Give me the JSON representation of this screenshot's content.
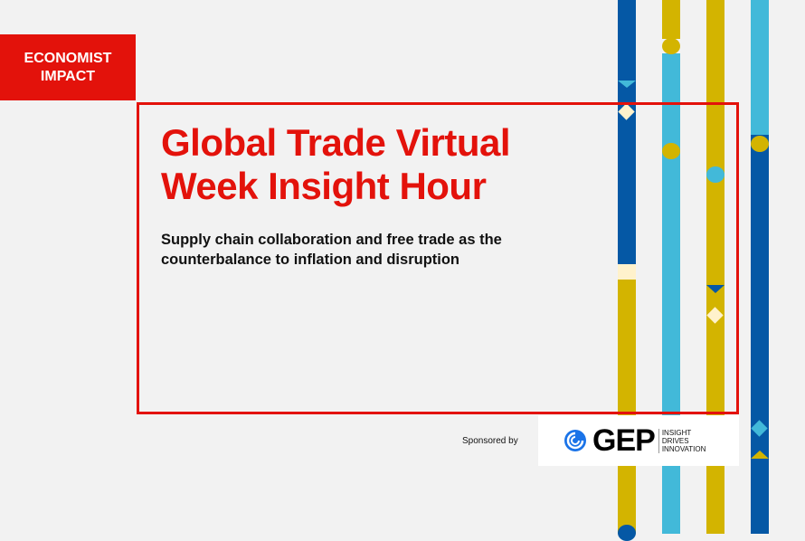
{
  "brand": {
    "line1": "ECONOMIST",
    "line2": "IMPACT"
  },
  "title": {
    "line1": "Global Trade Virtual",
    "line2": "Week Insight Hour"
  },
  "subtitle": {
    "line1": "Supply chain collaboration and free trade as the",
    "line2": "counterbalance to inflation and disruption"
  },
  "sponsor": {
    "label": "Sponsored by",
    "logo": "GEP",
    "tagline": [
      "INSIGHT",
      "DRIVES",
      "INNOVATION"
    ]
  },
  "colors": {
    "red": "#e3120b",
    "blue": "#0558a5",
    "cyan": "#42b9d9",
    "gold": "#d3b400",
    "cream": "#fff2cc"
  }
}
